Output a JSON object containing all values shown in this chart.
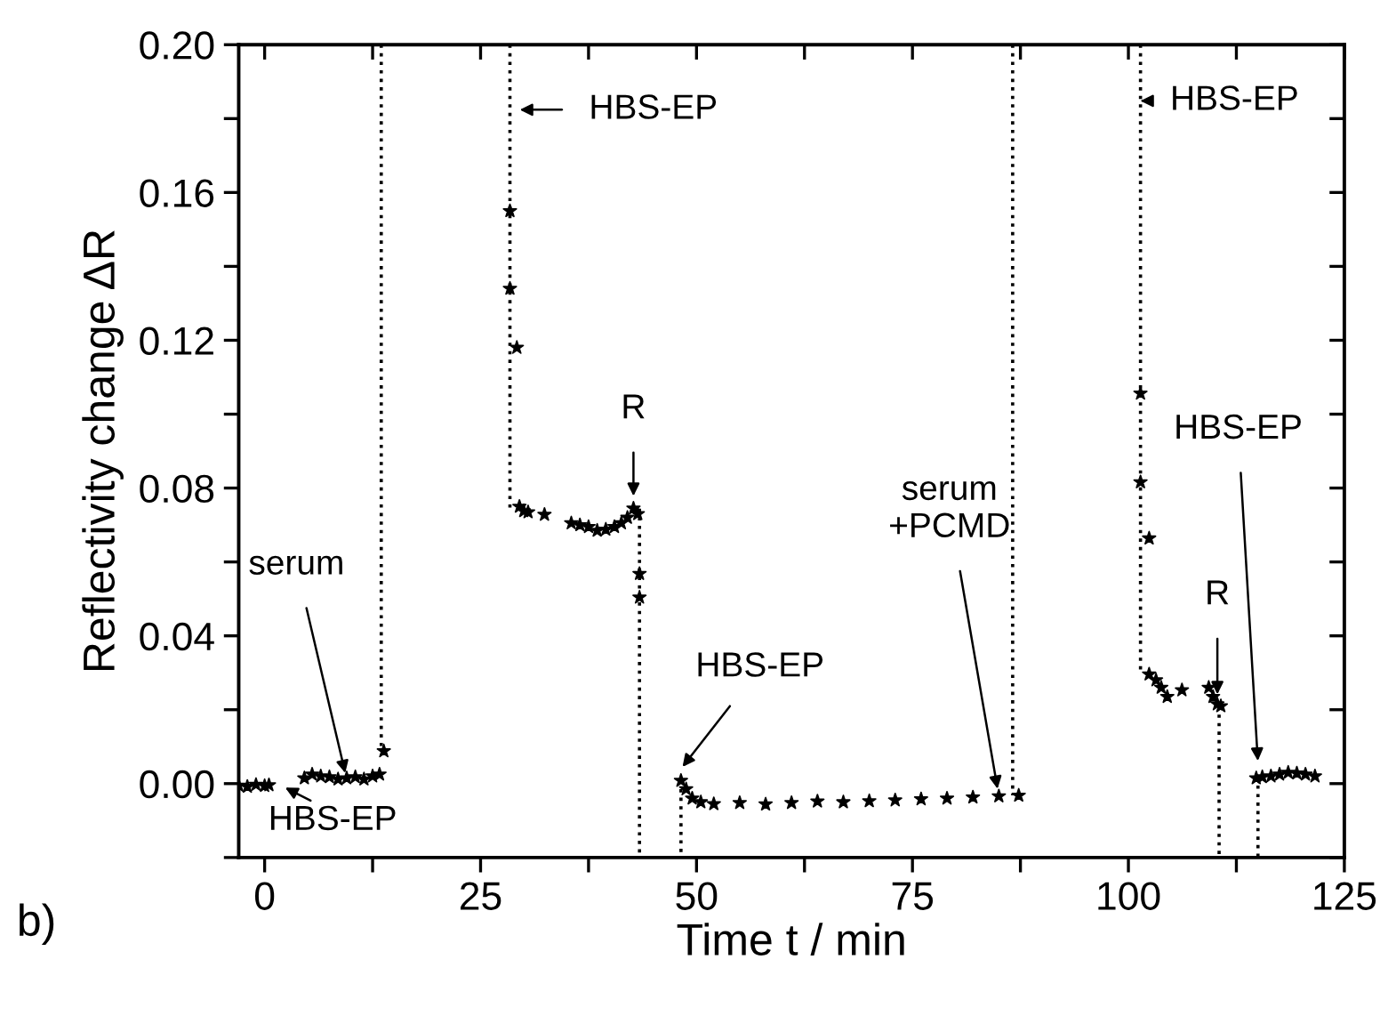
{
  "chart_data": {
    "type": "scatter",
    "xlabel": "Time t / min",
    "ylabel": "Reflectivity change ΔR",
    "xlim": [
      -3,
      125
    ],
    "ylim": [
      -0.02,
      0.2
    ],
    "xticks": [
      0,
      {
        "value": 12.5,
        "label": null
      },
      25,
      {
        "value": 37.5,
        "label": null
      },
      50,
      {
        "value": 62.5,
        "label": null
      },
      75,
      {
        "value": 87.5,
        "label": null
      },
      100,
      {
        "value": 112.5,
        "label": null
      },
      125
    ],
    "yticks": [
      {
        "value": -0.02,
        "label": null
      },
      {
        "value": 0,
        "label": "0.00"
      },
      {
        "value": 0.02,
        "label": null
      },
      {
        "value": 0.04,
        "label": "0.04"
      },
      {
        "value": 0.06,
        "label": null
      },
      {
        "value": 0.08,
        "label": "0.08"
      },
      {
        "value": 0.1,
        "label": null
      },
      {
        "value": 0.12,
        "label": "0.12"
      },
      {
        "value": 0.14,
        "label": null
      },
      {
        "value": 0.16,
        "label": "0.16"
      },
      {
        "value": 0.18,
        "label": null
      },
      {
        "value": 0.2,
        "label": "0.20"
      }
    ],
    "grid": false,
    "marker": "star",
    "series": [
      {
        "color": "#000000",
        "x": [
          -3,
          -2,
          -1,
          0,
          0.5,
          4.6,
          5.5,
          6.5,
          7.5,
          8.5,
          9.5,
          10.5,
          11.5,
          12.5,
          13.3,
          13.8,
          28.4,
          28.4,
          29.2,
          29.5,
          30.0,
          30.5,
          32.4,
          35.5,
          36.5,
          37.5,
          38.5,
          39.5,
          40.5,
          41.3,
          42,
          42.7,
          43.2,
          43.4,
          43.4,
          48.2,
          48.8,
          49.5,
          50.5,
          52,
          55,
          58,
          61,
          64,
          67,
          70,
          73,
          76,
          79,
          82,
          85,
          87.3,
          101.4,
          101.4,
          102.4,
          102.4,
          103.2,
          103.8,
          104.5,
          106.2,
          109.3,
          109.8,
          110.3,
          110.7,
          114.8,
          115.5,
          116.5,
          117.5,
          118.5,
          119.5,
          120.5,
          121.6
        ],
        "values": [
          -0.0005,
          -0.0008,
          -0.0003,
          -0.0006,
          -0.0004,
          0.0015,
          0.0025,
          0.002,
          0.0018,
          0.0012,
          0.0015,
          0.0018,
          0.0012,
          0.002,
          0.0025,
          0.0088,
          0.155,
          0.134,
          0.118,
          0.075,
          0.0738,
          0.0735,
          0.0728,
          0.0705,
          0.07,
          0.0695,
          0.0685,
          0.0688,
          0.0695,
          0.0705,
          0.072,
          0.0745,
          0.073,
          0.0568,
          0.0504,
          0.0008,
          -0.0015,
          -0.004,
          -0.005,
          -0.0055,
          -0.0052,
          -0.0056,
          -0.0052,
          -0.0048,
          -0.005,
          -0.0047,
          -0.0045,
          -0.0042,
          -0.004,
          -0.0037,
          -0.0034,
          -0.0032,
          0.1056,
          0.0816,
          0.0664,
          0.0296,
          0.028,
          0.026,
          0.0235,
          0.0253,
          0.026,
          0.0235,
          0.0215,
          0.021,
          0.0015,
          0.0018,
          0.002,
          0.0025,
          0.003,
          0.0028,
          0.0025,
          0.002
        ]
      },
      {
        "type": "line",
        "color": "#000000",
        "line_style": "dotted",
        "marker": "none",
        "x": [
          13.5,
          13.5,
          null,
          28.4,
          28.4,
          null,
          43.4,
          43.4,
          null,
          48.2,
          48.2,
          null,
          86.6,
          86.6,
          null,
          101.4,
          101.4,
          null,
          110.5,
          110.5,
          null,
          115,
          115
        ],
        "values": [
          0.2,
          0.0088,
          null,
          0.2,
          0.0744,
          null,
          0.0744,
          -0.02,
          null,
          0.0008,
          -0.02,
          null,
          0.2,
          -0.0032,
          null,
          0.2,
          0.0296,
          null,
          0.021,
          -0.02,
          null,
          0.0018,
          -0.02
        ]
      }
    ],
    "annotations": [
      {
        "text": "HBS-EP",
        "x": 28.4,
        "y": 0.1824
      },
      {
        "text": "HBS-EP",
        "x": 101.4,
        "y": 0.1848
      },
      {
        "text": "R",
        "x": 42.7,
        "y": 0.0772
      },
      {
        "text": "serum",
        "x": 9.4,
        "y": 0.0022
      },
      "HBS-EP",
      {
        "text": "HBS-EP",
        "x": 48.2,
        "y": 0.004
      },
      {
        "text": "serum\n+PCMD",
        "x": 85,
        "y": -0.0034
      },
      {
        "text": "HBS-EP",
        "x": 115,
        "y": 0.0055
      },
      {
        "text": "R",
        "x": 110.3,
        "y": 0.0215
      },
      "b)"
    ]
  }
}
